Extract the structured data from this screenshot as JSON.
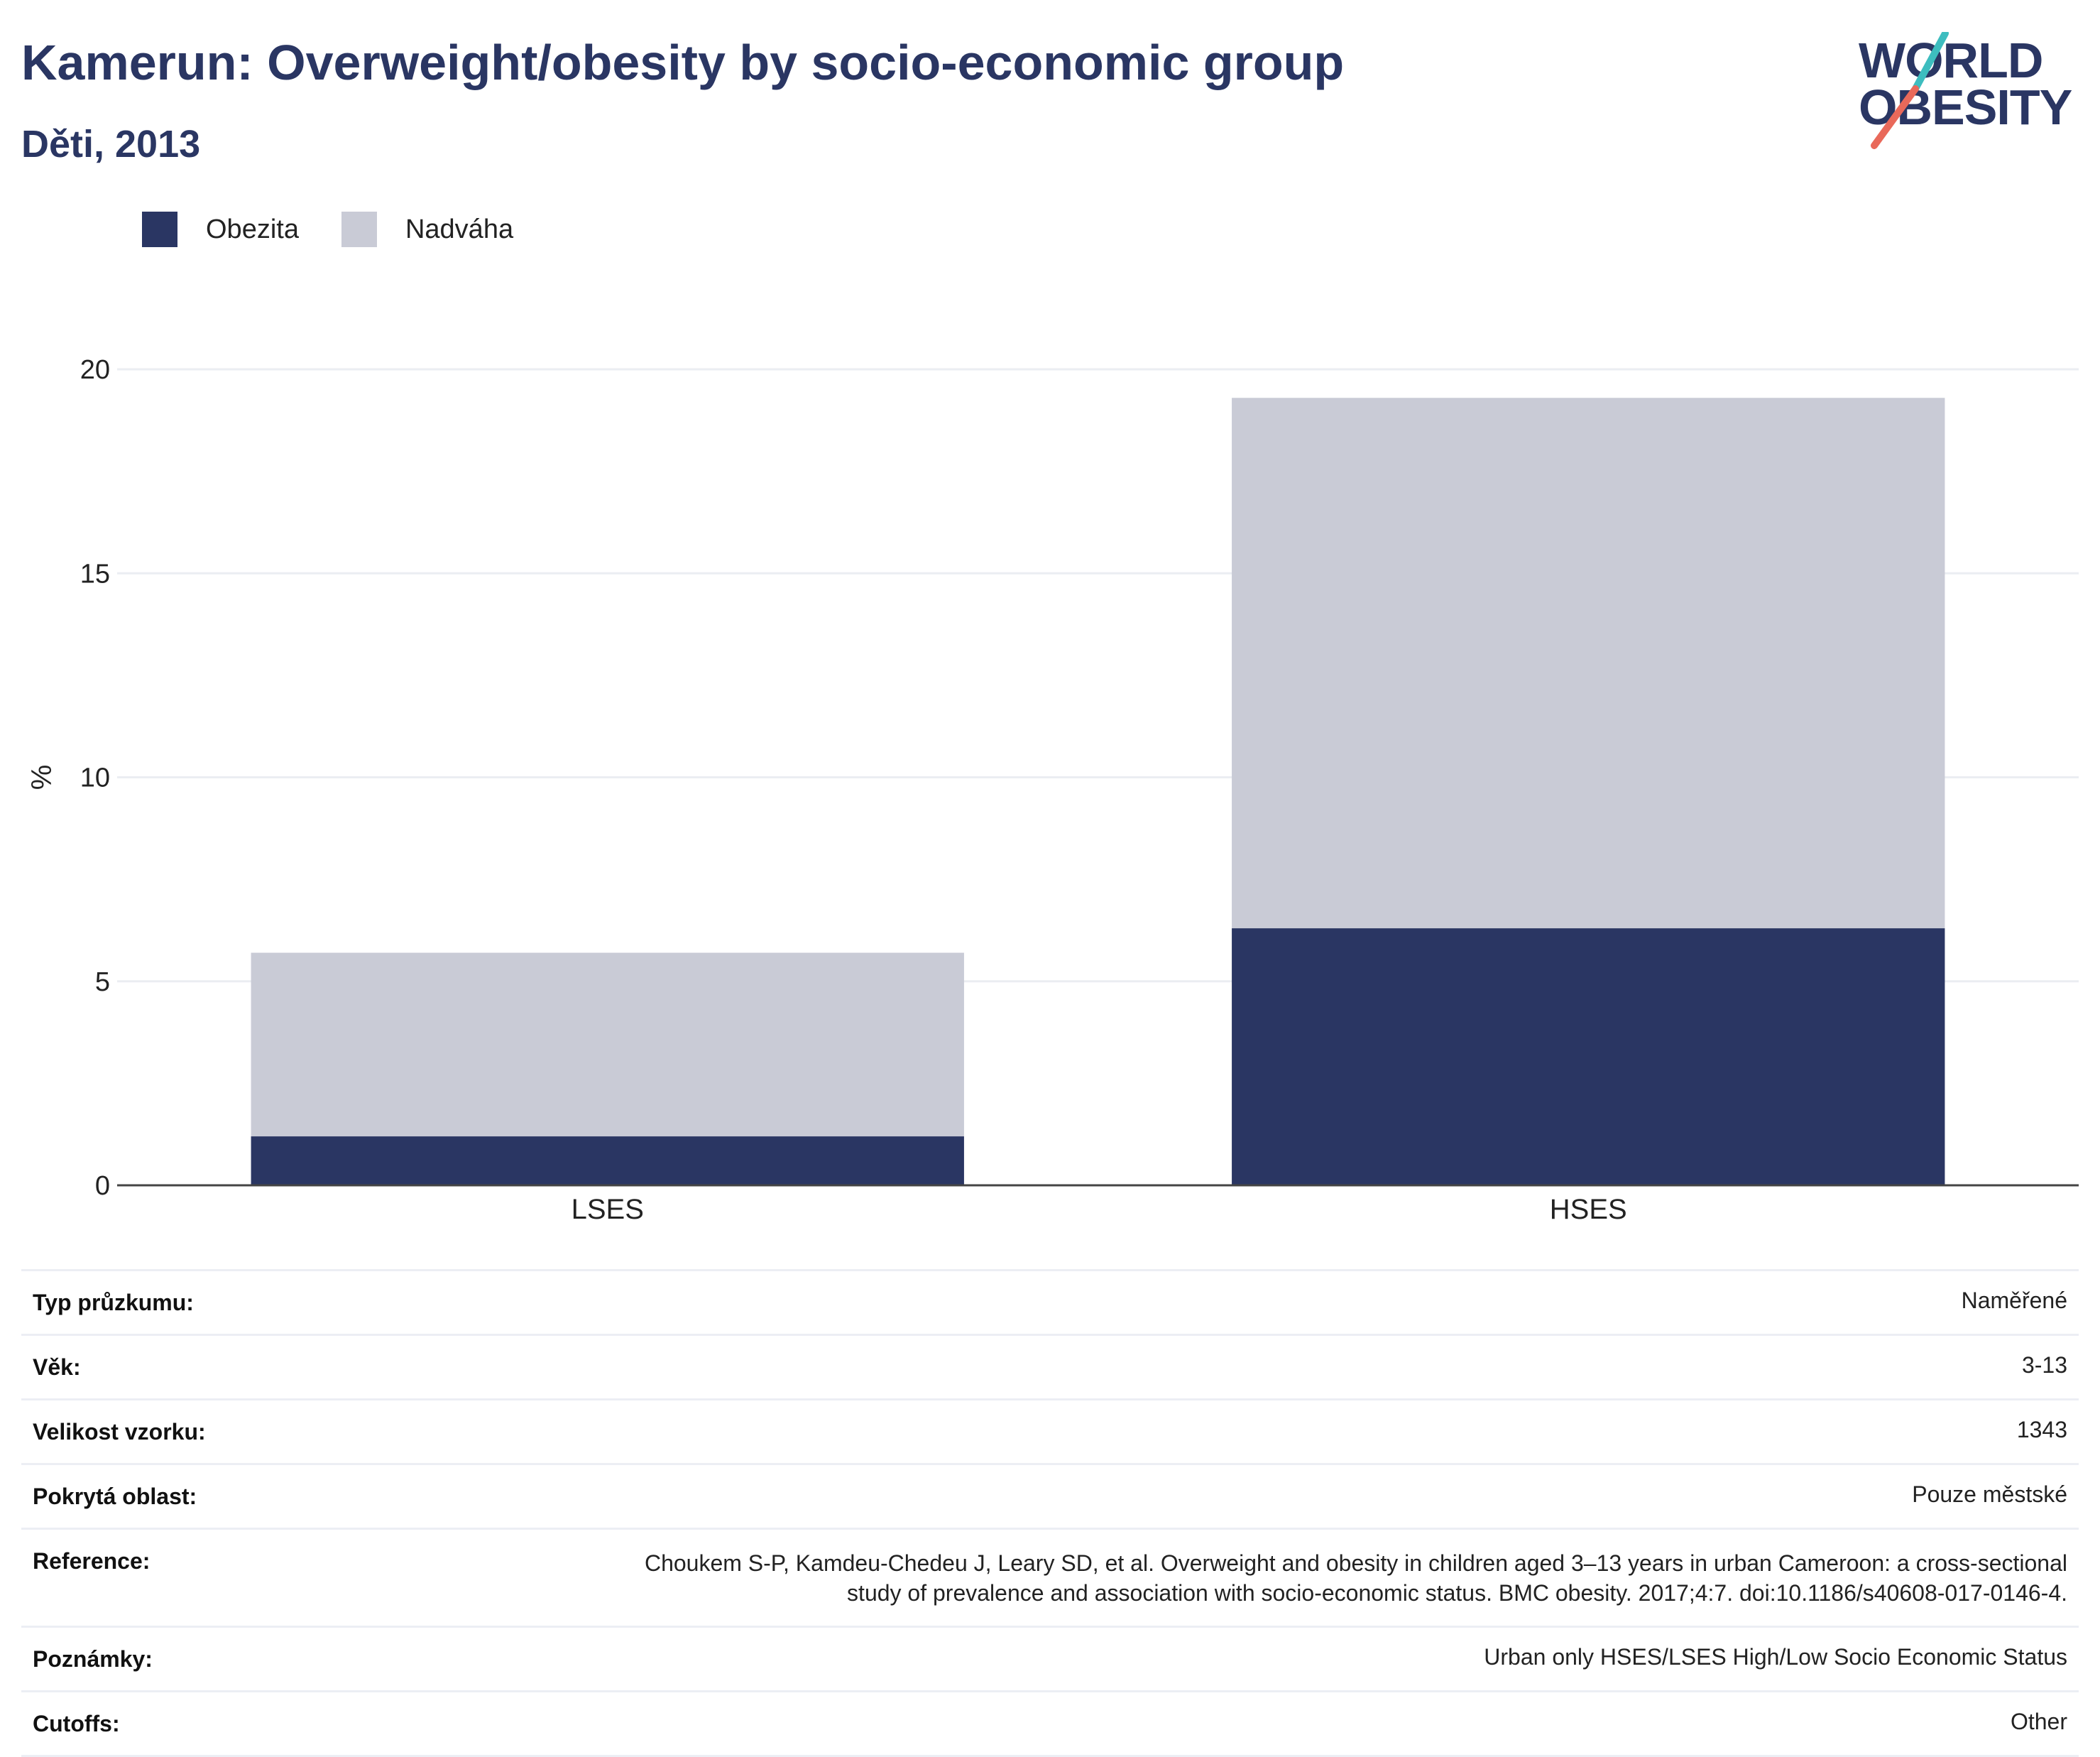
{
  "header": {
    "title": "Kamerun: Overweight/obesity by socio-economic group",
    "subtitle": "Děti, 2013"
  },
  "logo": {
    "line1": "WORLD",
    "line2": "OBESITY",
    "colors": {
      "text": "#2a3663",
      "slash_top": "#3dbdbf",
      "slash_bottom": "#e9695a"
    }
  },
  "chart_data": {
    "type": "bar",
    "stacked": true,
    "categories": [
      "LSES",
      "HSES"
    ],
    "series": [
      {
        "name": "Obezita",
        "color": "#2a3663",
        "values": [
          1.2,
          6.3
        ]
      },
      {
        "name": "Nadváha",
        "color": "#c9cbd6",
        "values": [
          4.5,
          13.0
        ]
      }
    ],
    "ylabel": "%",
    "ylim": [
      0,
      20
    ],
    "yticks": [
      0,
      5,
      10,
      15,
      20
    ],
    "grid": true,
    "legend_position": "top-left"
  },
  "metadata": [
    {
      "key": "Typ průzkumu:",
      "value": "Naměřené"
    },
    {
      "key": "Věk:",
      "value": "3-13"
    },
    {
      "key": "Velikost vzorku:",
      "value": "1343"
    },
    {
      "key": "Pokrytá oblast:",
      "value": "Pouze městské"
    },
    {
      "key": "Reference:",
      "value": "Choukem S-P, Kamdeu-Chedeu J, Leary SD, et al. Overweight and obesity in children aged 3–13 years in urban Cameroon: a cross-sectional study of prevalence and association with socio-economic status. BMC obesity. 2017;4:7. doi:10.1186/s40608-017-0146-4."
    },
    {
      "key": "Poznámky:",
      "value": "Urban only HSES/LSES High/Low Socio Economic Status"
    },
    {
      "key": "Cutoffs:",
      "value": "Other"
    }
  ]
}
